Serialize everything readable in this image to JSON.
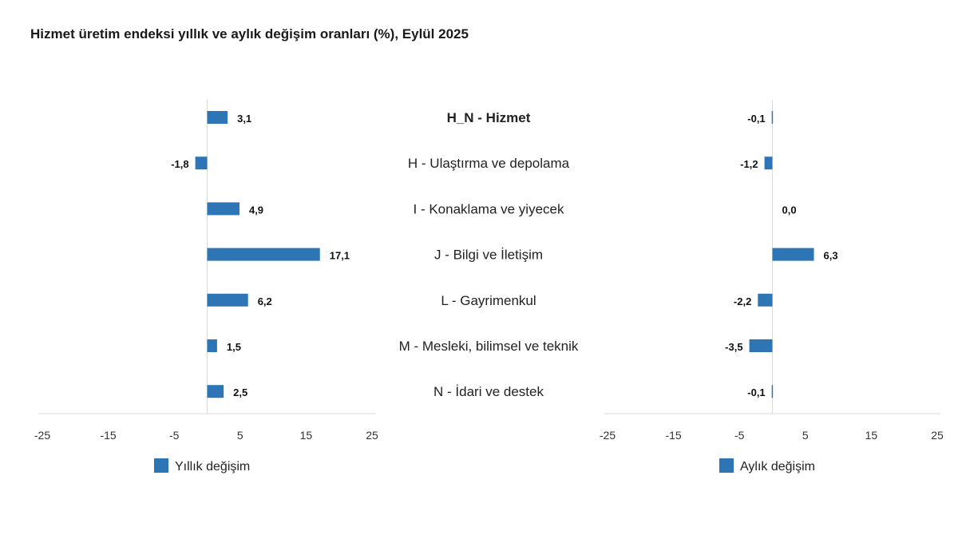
{
  "title": "Hizmet üretim endeksi yıllık ve aylık değişim oranları (%), Eylül 2025",
  "colors": {
    "bar": "#2e75b6",
    "axis": "#d9d9d9"
  },
  "chart_data": [
    {
      "type": "bar",
      "orientation": "horizontal",
      "categories": [
        "H_N - Hizmet",
        "H - Ulaştırma ve depolama",
        "I - Konaklama ve yiyecek",
        "J - Bilgi ve İletişim",
        "L - Gayrimenkul",
        "M - Mesleki, bilimsel ve teknik",
        "N - İdari ve destek"
      ],
      "series": [
        {
          "name": "Yıllık değişim",
          "values": [
            3.1,
            -1.8,
            4.9,
            17.1,
            6.2,
            1.5,
            2.5
          ],
          "labels": [
            "3,1",
            "-1,8",
            "4,9",
            "17,1",
            "6,2",
            "1,5",
            "2,5"
          ]
        }
      ],
      "xlim": [
        -25,
        25
      ],
      "ticks": [
        -25,
        -15,
        -5,
        5,
        15,
        25
      ],
      "tick_labels": [
        "-25",
        "-15",
        "-5",
        "5",
        "15",
        "25"
      ],
      "legend_position": "bottom-left",
      "grid": false
    },
    {
      "type": "bar",
      "orientation": "horizontal",
      "categories": [
        "H_N - Hizmet",
        "H - Ulaştırma ve depolama",
        "I - Konaklama ve yiyecek",
        "J - Bilgi ve İletişim",
        "L - Gayrimenkul",
        "M - Mesleki, bilimsel ve teknik",
        "N - İdari ve destek"
      ],
      "series": [
        {
          "name": "Aylık değişim",
          "values": [
            -0.1,
            -1.2,
            0.0,
            6.3,
            -2.2,
            -3.5,
            -0.1
          ],
          "labels": [
            "-0,1",
            "-1,2",
            "0,0",
            "6,3",
            "-2,2",
            "-3,5",
            "-0,1"
          ]
        }
      ],
      "xlim": [
        -25,
        25
      ],
      "ticks": [
        -25,
        -15,
        -5,
        5,
        15,
        25
      ],
      "tick_labels": [
        "-25",
        "-15",
        "-5",
        "5",
        "15",
        "25"
      ],
      "legend_position": "bottom-left",
      "grid": false
    }
  ]
}
